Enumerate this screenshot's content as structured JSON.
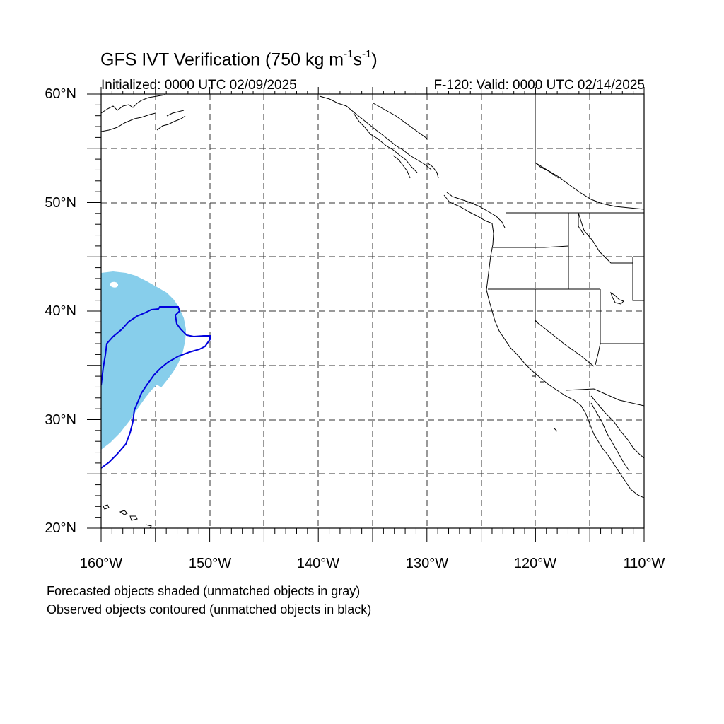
{
  "header": {
    "title_main": "GFS IVT Verification (750 kg m",
    "title_exp1": "-1",
    "title_mid": "s",
    "title_exp2": "-1",
    "title_end": ")",
    "initialized": "Initialized: 0000 UTC 02/09/2025",
    "valid": "F-120: Valid: 0000 UTC 02/14/2025"
  },
  "axes": {
    "lat_labels": [
      "60°N",
      "50°N",
      "40°N",
      "30°N",
      "20°N"
    ],
    "lon_labels": [
      "160°W",
      "150°W",
      "140°W",
      "130°W",
      "120°W",
      "110°W"
    ],
    "lat_range": [
      20,
      60
    ],
    "lon_range": [
      -160,
      -110
    ]
  },
  "map": {
    "forecast_object_color": "#87ceeb",
    "observed_contour_color": "#0000dd",
    "grid_style": "dashed"
  },
  "footer": {
    "line1": "Forecasted objects shaded (unmatched objects in gray)",
    "line2": "Observed objects contoured (unmatched objects in black)"
  }
}
